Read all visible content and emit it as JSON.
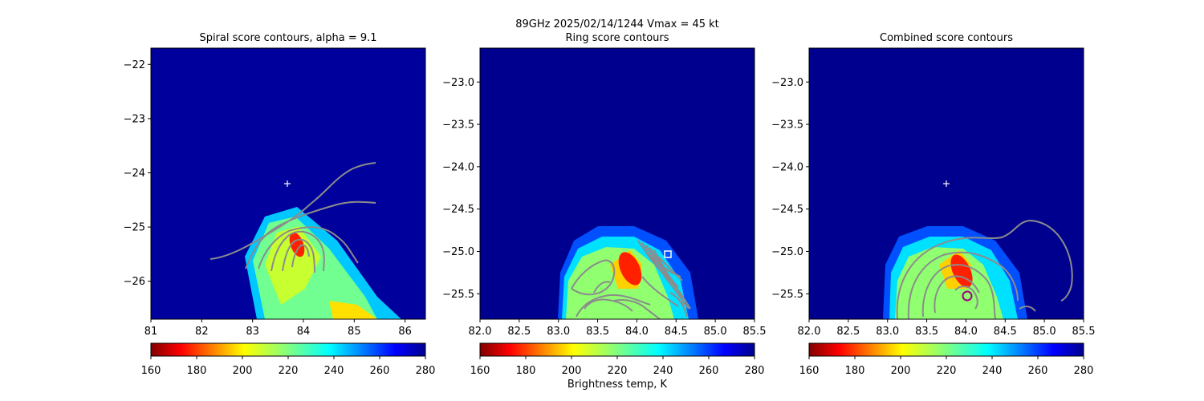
{
  "suptitle": "89GHz  2025/02/14/1244    Vmax = 45 kt",
  "colorbar": {
    "label": "Brightness temp, K",
    "min": 160,
    "max": 280,
    "ticks": [
      "160",
      "180",
      "200",
      "220",
      "240",
      "260",
      "280"
    ],
    "colormap": "jet_r"
  },
  "colors": {
    "background_field": "#00008f",
    "contour": "#8c8c8c",
    "marker": "#ffffff",
    "ring_marker": "#a0007a"
  },
  "chart_data": [
    {
      "type": "heatmap",
      "title": "Spiral score contours, alpha =  9.1",
      "xlim": [
        81.0,
        86.4
      ],
      "ylim": [
        -26.7,
        -21.7
      ],
      "xticks": [
        "81",
        "82",
        "83",
        "84",
        "85",
        "86"
      ],
      "yticks": [
        "−22",
        "−23",
        "−24",
        "−25",
        "−26"
      ],
      "center_marker": {
        "x": 83.73,
        "y": -24.2,
        "symbol": "+"
      },
      "features": [
        {
          "kind": "warm_band",
          "x": 84.2,
          "y": -25.7,
          "tb": 225
        },
        {
          "kind": "cold_core",
          "x": 83.9,
          "y": -25.3,
          "tb": 168
        }
      ],
      "contour_lines": 6
    },
    {
      "type": "heatmap",
      "title": "Ring score contours",
      "xlim": [
        82.0,
        85.5
      ],
      "ylim": [
        -25.8,
        -22.6
      ],
      "xticks": [
        "82.0",
        "82.5",
        "83.0",
        "83.5",
        "84.0",
        "84.5",
        "85.0",
        "85.5"
      ],
      "yticks": [
        "−23.0",
        "−23.5",
        "−24.0",
        "−24.5",
        "−25.0",
        "−25.5"
      ],
      "box_marker": {
        "x": 84.38,
        "y": -25.05,
        "symbol": "square"
      },
      "features": [
        {
          "kind": "warm_band",
          "x": 83.8,
          "y": -25.5,
          "tb": 215
        },
        {
          "kind": "cold_core",
          "x": 83.85,
          "y": -25.25,
          "tb": 168
        }
      ],
      "contour_lines": 14
    },
    {
      "type": "heatmap",
      "title": "Combined score contours",
      "xlim": [
        82.0,
        85.5
      ],
      "ylim": [
        -25.8,
        -22.6
      ],
      "xticks": [
        "82.0",
        "82.5",
        "83.0",
        "83.5",
        "84.0",
        "84.5",
        "85.0",
        "85.5"
      ],
      "yticks": [
        "−23.0",
        "−23.5",
        "−24.0",
        "−24.5",
        "−25.0",
        "−25.5"
      ],
      "center_marker": {
        "x": 83.73,
        "y": -24.2,
        "symbol": "+"
      },
      "ring_marker": {
        "x": 84.02,
        "y": -25.55,
        "symbol": "circle"
      },
      "features": [
        {
          "kind": "warm_band",
          "x": 83.8,
          "y": -25.5,
          "tb": 215
        },
        {
          "kind": "cold_core",
          "x": 83.95,
          "y": -25.35,
          "tb": 168
        }
      ],
      "contour_lines": 6
    }
  ]
}
